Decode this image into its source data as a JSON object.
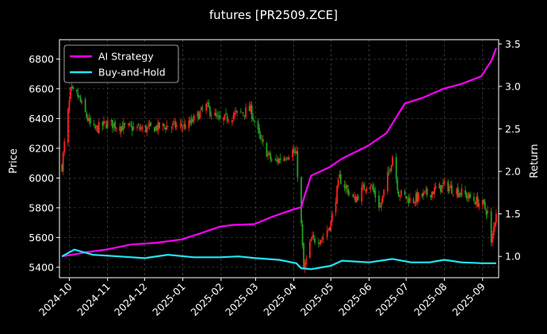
{
  "chart_data": {
    "type": "line",
    "title": "futures [PR2509.ZCE]",
    "ylabel": "Price",
    "y2label": "Return",
    "x_range": [
      "2024-09-23",
      "2025-09-14"
    ],
    "ylim": [
      5330,
      6930
    ],
    "y2lim": [
      0.75,
      3.55
    ],
    "x_ticks": [
      "2024-10",
      "2024-11",
      "2024-12",
      "2025-01",
      "2025-02",
      "2025-03",
      "2025-04",
      "2025-05",
      "2025-06",
      "2025-07",
      "2025-08",
      "2025-09"
    ],
    "y_ticks": [
      5400,
      5600,
      5800,
      6000,
      6200,
      6400,
      6600,
      6800
    ],
    "y2_ticks": [
      "1.0",
      "1.5",
      "2.0",
      "2.5",
      "3.0",
      "3.5"
    ],
    "grid": true,
    "legend_position": "top-left",
    "colors": {
      "up": "#ff2020",
      "down": "#1fa01f",
      "ai": "#ff00ff",
      "bh": "#22e4f4",
      "grid": "#555555"
    },
    "series": [
      {
        "name": "AI Strategy",
        "axis": "right",
        "x": [
          "2024-09-25",
          "2024-10-15",
          "2024-10-31",
          "2024-11-20",
          "2024-12-10",
          "2024-12-31",
          "2025-01-15",
          "2025-01-31",
          "2025-02-10",
          "2025-02-28",
          "2025-03-15",
          "2025-03-31",
          "2025-04-07",
          "2025-04-09",
          "2025-04-15",
          "2025-04-30",
          "2025-05-10",
          "2025-05-31",
          "2025-06-15",
          "2025-06-30",
          "2025-07-15",
          "2025-07-31",
          "2025-08-15",
          "2025-08-31",
          "2025-09-08",
          "2025-09-12"
        ],
        "values": [
          1.0,
          1.05,
          1.08,
          1.14,
          1.16,
          1.2,
          1.27,
          1.35,
          1.37,
          1.38,
          1.47,
          1.55,
          1.58,
          1.68,
          1.95,
          2.05,
          2.15,
          2.3,
          2.45,
          2.8,
          2.87,
          2.97,
          3.03,
          3.12,
          3.3,
          3.45
        ]
      },
      {
        "name": "Buy-and-Hold",
        "axis": "right",
        "x": [
          "2024-09-25",
          "2024-10-05",
          "2024-10-20",
          "2024-11-10",
          "2024-12-01",
          "2024-12-20",
          "2025-01-10",
          "2025-01-31",
          "2025-02-15",
          "2025-03-01",
          "2025-03-20",
          "2025-04-03",
          "2025-04-07",
          "2025-04-15",
          "2025-05-01",
          "2025-05-10",
          "2025-06-01",
          "2025-06-20",
          "2025-07-05",
          "2025-07-20",
          "2025-08-01",
          "2025-08-15",
          "2025-09-01",
          "2025-09-12"
        ],
        "values": [
          1.0,
          1.08,
          1.02,
          1.0,
          0.98,
          1.02,
          0.99,
          0.99,
          1.0,
          0.98,
          0.96,
          0.92,
          0.86,
          0.85,
          0.89,
          0.95,
          0.93,
          0.97,
          0.93,
          0.93,
          0.96,
          0.93,
          0.92,
          0.92
        ]
      }
    ],
    "price_path": {
      "x": [
        "2024-09-25",
        "2024-09-28",
        "2024-10-02",
        "2024-10-08",
        "2024-10-12",
        "2024-10-20",
        "2024-11-01",
        "2024-11-15",
        "2024-12-01",
        "2024-12-20",
        "2025-01-05",
        "2025-01-20",
        "2025-01-31",
        "2025-02-10",
        "2025-02-25",
        "2025-03-05",
        "2025-03-15",
        "2025-03-31",
        "2025-04-03",
        "2025-04-07",
        "2025-04-09",
        "2025-04-15",
        "2025-04-25",
        "2025-05-01",
        "2025-05-08",
        "2025-05-20",
        "2025-06-01",
        "2025-06-10",
        "2025-06-20",
        "2025-06-25",
        "2025-07-05",
        "2025-07-20",
        "2025-08-01",
        "2025-08-15",
        "2025-09-01",
        "2025-09-05",
        "2025-09-08",
        "2025-09-12"
      ],
      "values": [
        6080,
        6300,
        6580,
        6550,
        6470,
        6320,
        6370,
        6340,
        6330,
        6350,
        6350,
        6480,
        6380,
        6420,
        6460,
        6250,
        6100,
        6180,
        6150,
        5680,
        5380,
        5580,
        5600,
        5700,
        6000,
        5850,
        5980,
        5800,
        6150,
        5900,
        5850,
        5900,
        5950,
        5900,
        5820,
        5770,
        5550,
        5780
      ]
    }
  }
}
